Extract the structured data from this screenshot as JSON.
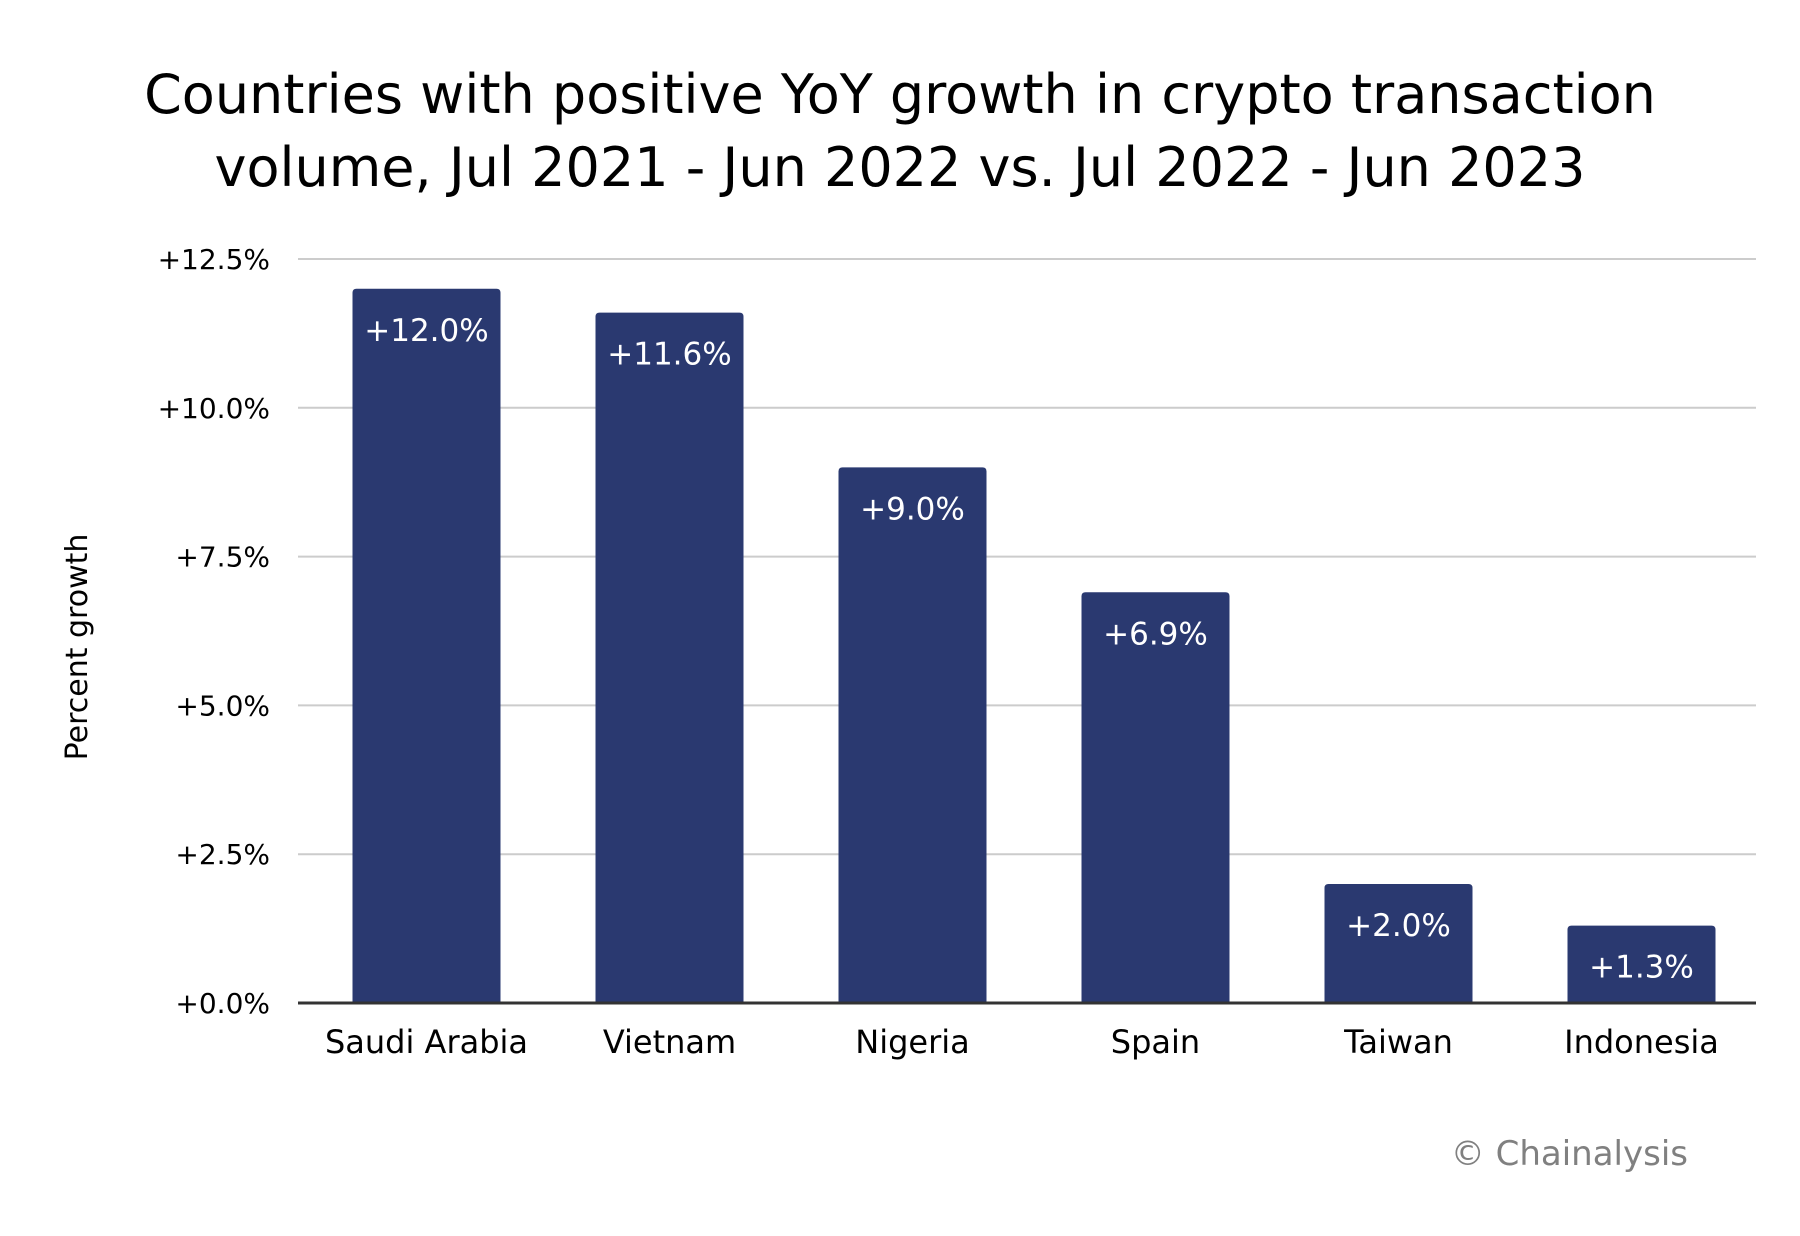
{
  "chart_data": {
    "type": "bar",
    "title_lines": [
      "Countries with positive YoY growth in crypto transaction",
      "volume, Jul 2021 - Jun 2022 vs. Jul 2022 - Jun 2023"
    ],
    "xlabel": "",
    "ylabel": "Percent growth",
    "categories": [
      "Saudi Arabia",
      "Vietnam",
      "Nigeria",
      "Spain",
      "Taiwan",
      "Indonesia"
    ],
    "values": [
      12.0,
      11.6,
      9.0,
      6.9,
      2.0,
      1.3
    ],
    "data_labels": [
      "+12.0%",
      "+11.6%",
      "+9.0%",
      "+6.9%",
      "+2.0%",
      "+1.3%"
    ],
    "ylim": [
      0,
      12.5
    ],
    "yticks": [
      0,
      2.5,
      5.0,
      7.5,
      10.0,
      12.5
    ],
    "ytick_labels": [
      "+0.0%",
      "+2.5%",
      "+5.0%",
      "+7.5%",
      "+10.0%",
      "+12.5%"
    ],
    "grid": true,
    "legend": "none",
    "colors": {
      "bar": "#2a3970",
      "grid": "#cccccc",
      "axis": "#333333"
    }
  },
  "credit": "© Chainalysis"
}
